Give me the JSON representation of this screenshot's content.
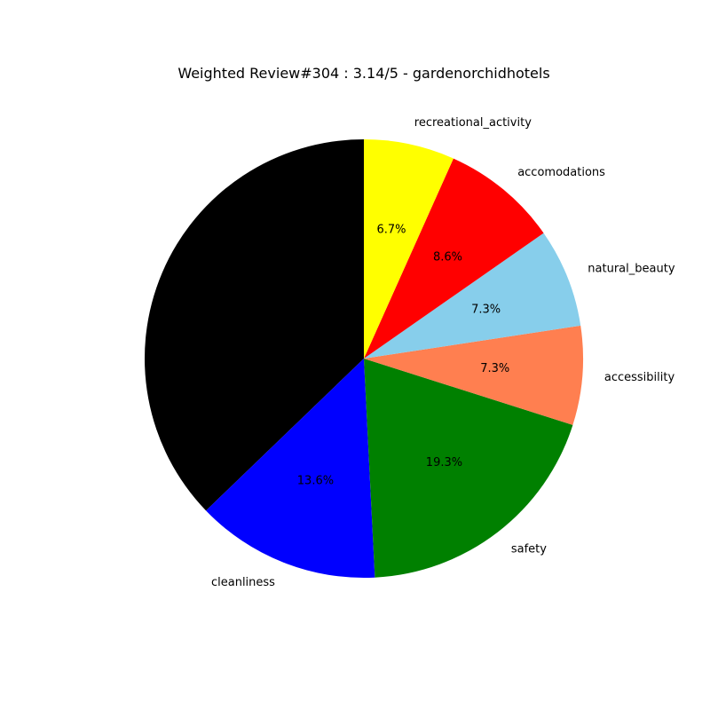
{
  "chart_data": {
    "type": "pie",
    "title": "Weighted Review#304 : 3.14/5 - gardenorchidhotels",
    "slices": [
      {
        "label": "",
        "value": 37.2,
        "pct_label": "",
        "color": "#000000"
      },
      {
        "label": "cleanliness",
        "value": 13.6,
        "pct_label": "13.6%",
        "color": "#0000ff"
      },
      {
        "label": "safety",
        "value": 19.3,
        "pct_label": "19.3%",
        "color": "#008000"
      },
      {
        "label": "accessibility",
        "value": 7.3,
        "pct_label": "7.3%",
        "color": "#ff7f50"
      },
      {
        "label": "natural_beauty",
        "value": 7.3,
        "pct_label": "7.3%",
        "color": "#87ceeb"
      },
      {
        "label": "accomodations",
        "value": 8.6,
        "pct_label": "8.6%",
        "color": "#ff0000"
      },
      {
        "label": "recreational_activity",
        "value": 6.7,
        "pct_label": "6.7%",
        "color": "#ffff00"
      }
    ],
    "start_angle_deg": 90,
    "direction": "counterclockwise",
    "legend": "none"
  }
}
